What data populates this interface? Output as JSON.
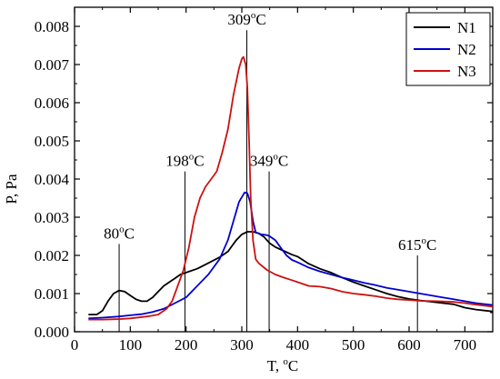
{
  "chart_data": {
    "type": "line",
    "xlabel": "T, °C",
    "xlabel_text": "T, ",
    "xlabel_unit": "C",
    "ylabel": "P, Pa",
    "xlim": [
      0,
      750
    ],
    "ylim": [
      0,
      0.0085
    ],
    "xticks": [
      0,
      100,
      200,
      300,
      400,
      500,
      600,
      700
    ],
    "xtick_labels": [
      "0",
      "100",
      "200",
      "300",
      "400",
      "500",
      "600",
      "700"
    ],
    "yticks": [
      0,
      0.001,
      0.002,
      0.003,
      0.004,
      0.005,
      0.006,
      0.007,
      0.008
    ],
    "ytick_labels": [
      "0.000",
      "0.001",
      "0.002",
      "0.003",
      "0.004",
      "0.005",
      "0.006",
      "0.007",
      "0.008"
    ],
    "grid": false,
    "legend_position": "top-right",
    "series": [
      {
        "name": "N1",
        "color": "#000000",
        "points": [
          [
            25,
            0.00045
          ],
          [
            40,
            0.00045
          ],
          [
            50,
            0.00055
          ],
          [
            60,
            0.0008
          ],
          [
            70,
            0.001
          ],
          [
            80,
            0.00108
          ],
          [
            90,
            0.00105
          ],
          [
            100,
            0.00095
          ],
          [
            110,
            0.00085
          ],
          [
            120,
            0.0008
          ],
          [
            130,
            0.0008
          ],
          [
            140,
            0.0009
          ],
          [
            150,
            0.00105
          ],
          [
            160,
            0.0012
          ],
          [
            170,
            0.0013
          ],
          [
            180,
            0.0014
          ],
          [
            190,
            0.0015
          ],
          [
            200,
            0.00155
          ],
          [
            220,
            0.00165
          ],
          [
            240,
            0.0018
          ],
          [
            260,
            0.00195
          ],
          [
            275,
            0.0021
          ],
          [
            290,
            0.0024
          ],
          [
            300,
            0.00255
          ],
          [
            310,
            0.00262
          ],
          [
            320,
            0.00262
          ],
          [
            330,
            0.00258
          ],
          [
            340,
            0.00248
          ],
          [
            350,
            0.00232
          ],
          [
            360,
            0.00222
          ],
          [
            375,
            0.00212
          ],
          [
            390,
            0.00202
          ],
          [
            400,
            0.00197
          ],
          [
            420,
            0.00178
          ],
          [
            440,
            0.00165
          ],
          [
            460,
            0.00155
          ],
          [
            480,
            0.00142
          ],
          [
            500,
            0.0013
          ],
          [
            520,
            0.0012
          ],
          [
            540,
            0.0011
          ],
          [
            560,
            0.001
          ],
          [
            580,
            0.00092
          ],
          [
            600,
            0.00086
          ],
          [
            620,
            0.00082
          ],
          [
            650,
            0.00077
          ],
          [
            680,
            0.00072
          ],
          [
            700,
            0.00063
          ],
          [
            720,
            0.00058
          ],
          [
            750,
            0.00053
          ]
        ]
      },
      {
        "name": "N2",
        "color": "#0000cc",
        "points": [
          [
            25,
            0.00035
          ],
          [
            50,
            0.00037
          ],
          [
            80,
            0.0004
          ],
          [
            100,
            0.00043
          ],
          [
            120,
            0.00046
          ],
          [
            140,
            0.00052
          ],
          [
            160,
            0.0006
          ],
          [
            180,
            0.00075
          ],
          [
            200,
            0.0009
          ],
          [
            220,
            0.0012
          ],
          [
            240,
            0.0015
          ],
          [
            260,
            0.0019
          ],
          [
            275,
            0.0024
          ],
          [
            285,
            0.0029
          ],
          [
            295,
            0.0034
          ],
          [
            305,
            0.00365
          ],
          [
            310,
            0.00363
          ],
          [
            315,
            0.0034
          ],
          [
            320,
            0.0029
          ],
          [
            325,
            0.0026
          ],
          [
            335,
            0.00255
          ],
          [
            345,
            0.00253
          ],
          [
            350,
            0.0025
          ],
          [
            360,
            0.0024
          ],
          [
            370,
            0.0022
          ],
          [
            380,
            0.002
          ],
          [
            390,
            0.00188
          ],
          [
            400,
            0.00182
          ],
          [
            420,
            0.00168
          ],
          [
            440,
            0.00158
          ],
          [
            460,
            0.0015
          ],
          [
            480,
            0.00142
          ],
          [
            500,
            0.00135
          ],
          [
            520,
            0.00128
          ],
          [
            540,
            0.00122
          ],
          [
            560,
            0.00115
          ],
          [
            580,
            0.0011
          ],
          [
            600,
            0.00105
          ],
          [
            620,
            0.001
          ],
          [
            640,
            0.00095
          ],
          [
            660,
            0.0009
          ],
          [
            680,
            0.00085
          ],
          [
            700,
            0.0008
          ],
          [
            720,
            0.00075
          ],
          [
            750,
            0.0007
          ]
        ]
      },
      {
        "name": "N3",
        "color": "#cc1111",
        "points": [
          [
            25,
            0.00032
          ],
          [
            50,
            0.00032
          ],
          [
            80,
            0.00033
          ],
          [
            100,
            0.00035
          ],
          [
            130,
            0.0004
          ],
          [
            150,
            0.00045
          ],
          [
            165,
            0.0006
          ],
          [
            175,
            0.0008
          ],
          [
            185,
            0.0012
          ],
          [
            195,
            0.0016
          ],
          [
            205,
            0.0022
          ],
          [
            215,
            0.003
          ],
          [
            225,
            0.0035
          ],
          [
            235,
            0.0038
          ],
          [
            245,
            0.004
          ],
          [
            255,
            0.0042
          ],
          [
            265,
            0.0047
          ],
          [
            275,
            0.0053
          ],
          [
            285,
            0.0062
          ],
          [
            295,
            0.0069
          ],
          [
            300,
            0.00715
          ],
          [
            303,
            0.0072
          ],
          [
            307,
            0.007
          ],
          [
            310,
            0.0064
          ],
          [
            313,
            0.005
          ],
          [
            316,
            0.0035
          ],
          [
            320,
            0.0024
          ],
          [
            325,
            0.0019
          ],
          [
            330,
            0.0018
          ],
          [
            345,
            0.00162
          ],
          [
            360,
            0.0015
          ],
          [
            375,
            0.00142
          ],
          [
            390,
            0.00135
          ],
          [
            400,
            0.0013
          ],
          [
            420,
            0.0012
          ],
          [
            440,
            0.00118
          ],
          [
            460,
            0.00113
          ],
          [
            480,
            0.00105
          ],
          [
            500,
            0.001
          ],
          [
            520,
            0.00097
          ],
          [
            540,
            0.00093
          ],
          [
            560,
            0.00088
          ],
          [
            580,
            0.00085
          ],
          [
            600,
            0.00083
          ],
          [
            620,
            0.00081
          ],
          [
            650,
            0.0008
          ],
          [
            680,
            0.00078
          ],
          [
            700,
            0.00075
          ],
          [
            720,
            0.00071
          ],
          [
            750,
            0.00066
          ]
        ]
      }
    ],
    "annotations": [
      {
        "label": "80",
        "unit": "C",
        "x": 80,
        "top": 0.0023
      },
      {
        "label": "198",
        "unit": "C",
        "x": 198,
        "top": 0.0042
      },
      {
        "label": "309",
        "unit": "C",
        "x": 309,
        "top": 0.0079
      },
      {
        "label": "349",
        "unit": "C",
        "x": 349,
        "top": 0.0042
      },
      {
        "label": "615",
        "unit": "C",
        "x": 615,
        "top": 0.002
      }
    ]
  }
}
